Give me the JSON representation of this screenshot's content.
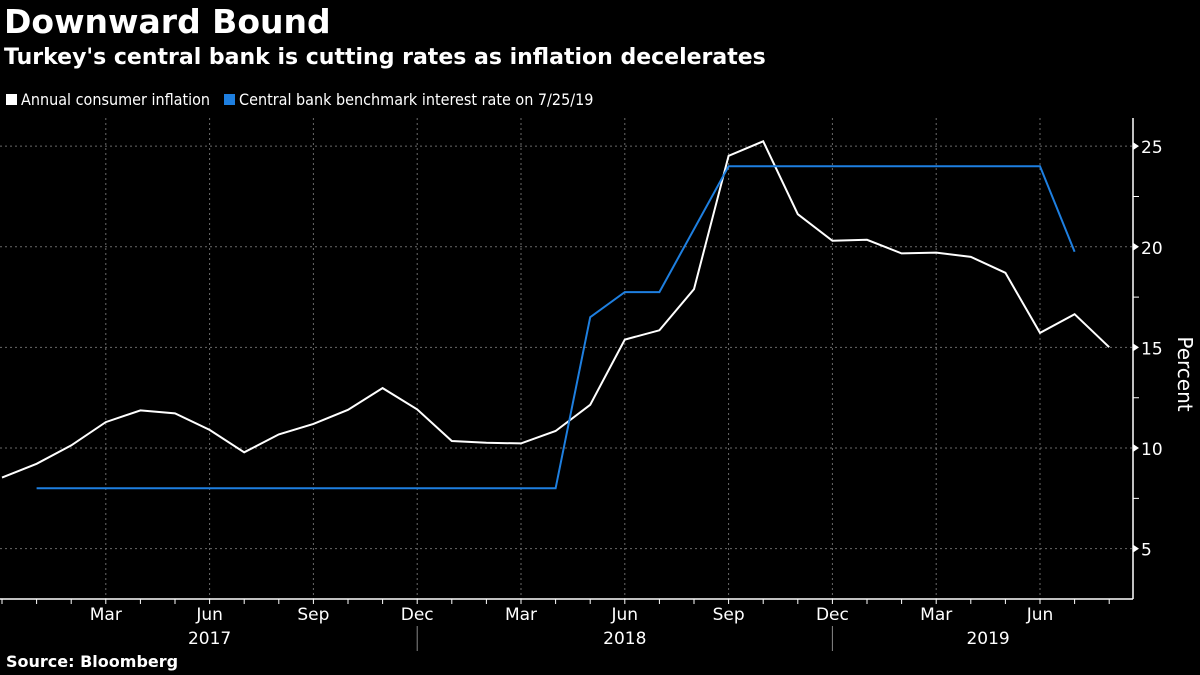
{
  "header": {
    "title": "Downward Bound",
    "subtitle": "Turkey's central bank is cutting rates as inflation decelerates"
  },
  "footer": {
    "source": "Source: Bloomberg"
  },
  "colors": {
    "background": "#000000",
    "inflation": "#ffffff",
    "rate": "#1e7fe0",
    "grid": "#6a6a6a"
  },
  "chart_data": {
    "type": "line",
    "title": "Downward Bound",
    "subtitle": "Turkey's central bank is cutting rates as inflation decelerates",
    "xlabel": "",
    "ylabel": "Percent",
    "y_axis_position": "right",
    "ylim": [
      2.5,
      26.4
    ],
    "yticks": [
      5,
      10,
      15,
      20,
      25
    ],
    "grid": true,
    "legend_position": "top-left",
    "x": [
      "Dec 2016",
      "Jan 2017",
      "Feb 2017",
      "Mar 2017",
      "Apr 2017",
      "May 2017",
      "Jun 2017",
      "Jul 2017",
      "Aug 2017",
      "Sep 2017",
      "Oct 2017",
      "Nov 2017",
      "Dec 2017",
      "Jan 2018",
      "Feb 2018",
      "Mar 2018",
      "Apr 2018",
      "May 2018",
      "Jun 2018",
      "Jul 2018",
      "Aug 2018",
      "Sep 2018",
      "Oct 2018",
      "Nov 2018",
      "Dec 2018",
      "Jan 2019",
      "Feb 2019",
      "Mar 2019",
      "Apr 2019",
      "May 2019",
      "Jun 2019",
      "Jul 2019",
      "Aug 2019"
    ],
    "xtick_labels": [
      {
        "index": 3,
        "label": "Mar"
      },
      {
        "index": 6,
        "label": "Jun"
      },
      {
        "index": 9,
        "label": "Sep"
      },
      {
        "index": 12,
        "label": "Dec"
      },
      {
        "index": 15,
        "label": "Mar"
      },
      {
        "index": 18,
        "label": "Jun"
      },
      {
        "index": 21,
        "label": "Sep"
      },
      {
        "index": 24,
        "label": "Dec"
      },
      {
        "index": 27,
        "label": "Mar"
      },
      {
        "index": 30,
        "label": "Jun"
      }
    ],
    "year_labels": [
      {
        "index": 6,
        "label": "2017"
      },
      {
        "index": 18,
        "label": "2018"
      },
      {
        "index": 28.5,
        "label": "2019"
      }
    ],
    "year_dividers": [
      12,
      24
    ],
    "series": [
      {
        "name": "Annual consumer inflation",
        "color": "#ffffff",
        "values": [
          8.53,
          9.22,
          10.13,
          11.29,
          11.87,
          11.72,
          10.9,
          9.79,
          10.68,
          11.2,
          11.9,
          12.98,
          11.92,
          10.35,
          10.26,
          10.23,
          10.85,
          12.15,
          15.39,
          15.85,
          17.9,
          24.52,
          25.24,
          21.62,
          20.3,
          20.35,
          19.67,
          19.71,
          19.5,
          18.71,
          15.72,
          16.65,
          15.01
        ]
      },
      {
        "name": "Central bank benchmark interest rate on 7/25/19",
        "color": "#1e7fe0",
        "values": [
          null,
          8.0,
          8.0,
          8.0,
          8.0,
          8.0,
          8.0,
          8.0,
          8.0,
          8.0,
          8.0,
          8.0,
          8.0,
          8.0,
          8.0,
          8.0,
          8.0,
          16.5,
          17.75,
          17.75,
          null,
          24.0,
          24.0,
          24.0,
          24.0,
          24.0,
          24.0,
          24.0,
          24.0,
          24.0,
          24.0,
          19.75,
          null
        ]
      }
    ]
  }
}
